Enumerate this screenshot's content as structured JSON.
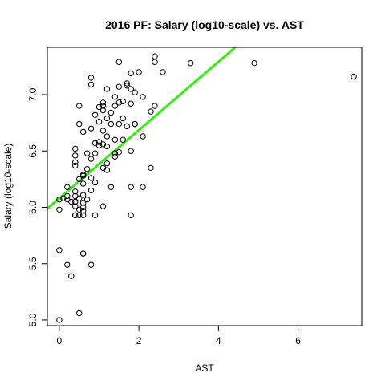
{
  "chart_data": {
    "type": "scatter",
    "title": "2016 PF: Salary (log10-scale) vs. AST",
    "xlabel": "AST",
    "ylabel": "Salary (log10-scale)",
    "xlim": [
      -0.3,
      7.6
    ],
    "ylim": [
      4.95,
      7.42
    ],
    "x_ticks": [
      0,
      2,
      4,
      6
    ],
    "y_ticks": [
      5.0,
      5.5,
      6.0,
      6.5,
      7.0
    ],
    "x_tick_labels": [
      "0",
      "2",
      "4",
      "6"
    ],
    "y_tick_labels": [
      "5.0",
      "5.5",
      "6.0",
      "6.5",
      "7.0"
    ],
    "grid": false,
    "point_style": "open-circle",
    "fit_line": {
      "intercept": 6.08,
      "slope": 0.303,
      "color": "#33ee11"
    },
    "points": [
      {
        "x": 1.5,
        "y": 7.29
      },
      {
        "x": 2.4,
        "y": 7.34
      },
      {
        "x": 2.4,
        "y": 7.29
      },
      {
        "x": 3.3,
        "y": 7.28
      },
      {
        "x": 4.9,
        "y": 7.28
      },
      {
        "x": 7.4,
        "y": 7.16
      },
      {
        "x": 2.6,
        "y": 7.2
      },
      {
        "x": 2.0,
        "y": 7.2
      },
      {
        "x": 1.8,
        "y": 7.19
      },
      {
        "x": 0.8,
        "y": 7.15
      },
      {
        "x": 1.7,
        "y": 7.1
      },
      {
        "x": 1.7,
        "y": 7.08
      },
      {
        "x": 1.5,
        "y": 7.07
      },
      {
        "x": 0.8,
        "y": 7.09
      },
      {
        "x": 1.8,
        "y": 7.05
      },
      {
        "x": 1.2,
        "y": 7.05
      },
      {
        "x": 1.9,
        "y": 7.02
      },
      {
        "x": 2.1,
        "y": 6.98
      },
      {
        "x": 1.4,
        "y": 6.98
      },
      {
        "x": 1.6,
        "y": 6.94
      },
      {
        "x": 1.5,
        "y": 6.93
      },
      {
        "x": 1.1,
        "y": 6.93
      },
      {
        "x": 1.1,
        "y": 6.9
      },
      {
        "x": 1.4,
        "y": 6.9
      },
      {
        "x": 1.0,
        "y": 6.89
      },
      {
        "x": 0.5,
        "y": 6.9
      },
      {
        "x": 1.8,
        "y": 6.92
      },
      {
        "x": 2.4,
        "y": 6.9
      },
      {
        "x": 1.1,
        "y": 6.86
      },
      {
        "x": 1.3,
        "y": 6.84
      },
      {
        "x": 2.3,
        "y": 6.85
      },
      {
        "x": 0.9,
        "y": 6.82
      },
      {
        "x": 1.2,
        "y": 6.79
      },
      {
        "x": 1.6,
        "y": 6.79
      },
      {
        "x": 1.0,
        "y": 6.76
      },
      {
        "x": 1.3,
        "y": 6.74
      },
      {
        "x": 1.5,
        "y": 6.74
      },
      {
        "x": 1.9,
        "y": 6.74
      },
      {
        "x": 1.9,
        "y": 6.74
      },
      {
        "x": 0.5,
        "y": 6.74
      },
      {
        "x": 1.7,
        "y": 6.72
      },
      {
        "x": 0.8,
        "y": 6.7
      },
      {
        "x": 1.1,
        "y": 6.68
      },
      {
        "x": 0.6,
        "y": 6.67
      },
      {
        "x": 2.1,
        "y": 6.63
      },
      {
        "x": 1.2,
        "y": 6.63
      },
      {
        "x": 1.4,
        "y": 6.6
      },
      {
        "x": 1.6,
        "y": 6.6
      },
      {
        "x": 1.0,
        "y": 6.58
      },
      {
        "x": 1.0,
        "y": 6.55
      },
      {
        "x": 0.9,
        "y": 6.57
      },
      {
        "x": 1.1,
        "y": 6.56
      },
      {
        "x": 1.2,
        "y": 6.54
      },
      {
        "x": 0.4,
        "y": 6.52
      },
      {
        "x": 1.5,
        "y": 6.49
      },
      {
        "x": 1.4,
        "y": 6.48
      },
      {
        "x": 1.8,
        "y": 6.5
      },
      {
        "x": 0.7,
        "y": 6.48
      },
      {
        "x": 0.9,
        "y": 6.48
      },
      {
        "x": 1.4,
        "y": 6.45
      },
      {
        "x": 0.4,
        "y": 6.46
      },
      {
        "x": 0.8,
        "y": 6.43
      },
      {
        "x": 0.4,
        "y": 6.4
      },
      {
        "x": 1.2,
        "y": 6.39
      },
      {
        "x": 0.4,
        "y": 6.37
      },
      {
        "x": 1.1,
        "y": 6.35
      },
      {
        "x": 2.3,
        "y": 6.35
      },
      {
        "x": 0.7,
        "y": 6.34
      },
      {
        "x": 1.2,
        "y": 6.33
      },
      {
        "x": 0.6,
        "y": 6.29
      },
      {
        "x": 0.6,
        "y": 6.28
      },
      {
        "x": 0.8,
        "y": 6.26
      },
      {
        "x": 0.5,
        "y": 6.25
      },
      {
        "x": 0.9,
        "y": 6.22
      },
      {
        "x": 0.6,
        "y": 6.21
      },
      {
        "x": 0.2,
        "y": 6.18
      },
      {
        "x": 1.3,
        "y": 6.18
      },
      {
        "x": 1.8,
        "y": 6.18
      },
      {
        "x": 2.1,
        "y": 6.18
      },
      {
        "x": 0.8,
        "y": 6.15
      },
      {
        "x": 0.4,
        "y": 6.14
      },
      {
        "x": 0.6,
        "y": 6.11
      },
      {
        "x": 0.2,
        "y": 6.1
      },
      {
        "x": 0.4,
        "y": 6.1
      },
      {
        "x": 0.5,
        "y": 6.08
      },
      {
        "x": 0.0,
        "y": 6.07
      },
      {
        "x": 0.1,
        "y": 6.08
      },
      {
        "x": 0.7,
        "y": 6.07
      },
      {
        "x": 0.2,
        "y": 6.07
      },
      {
        "x": 0.4,
        "y": 6.05
      },
      {
        "x": 0.3,
        "y": 6.05
      },
      {
        "x": 0.6,
        "y": 6.04
      },
      {
        "x": 0.4,
        "y": 6.01
      },
      {
        "x": 0.6,
        "y": 6.0
      },
      {
        "x": 1.1,
        "y": 6.01
      },
      {
        "x": 0.5,
        "y": 5.98
      },
      {
        "x": 0.0,
        "y": 5.98
      },
      {
        "x": 0.6,
        "y": 5.97
      },
      {
        "x": 0.4,
        "y": 5.93
      },
      {
        "x": 0.5,
        "y": 5.93
      },
      {
        "x": 0.6,
        "y": 5.93
      },
      {
        "x": 0.9,
        "y": 5.93
      },
      {
        "x": 1.8,
        "y": 5.93
      },
      {
        "x": 0.4,
        "y": 5.93
      },
      {
        "x": 0.0,
        "y": 5.62
      },
      {
        "x": 0.6,
        "y": 5.59
      },
      {
        "x": 0.6,
        "y": 5.59
      },
      {
        "x": 0.2,
        "y": 5.49
      },
      {
        "x": 0.8,
        "y": 5.49
      },
      {
        "x": 0.3,
        "y": 5.39
      },
      {
        "x": 0.5,
        "y": 5.06
      },
      {
        "x": 0.0,
        "y": 5.0
      }
    ]
  }
}
